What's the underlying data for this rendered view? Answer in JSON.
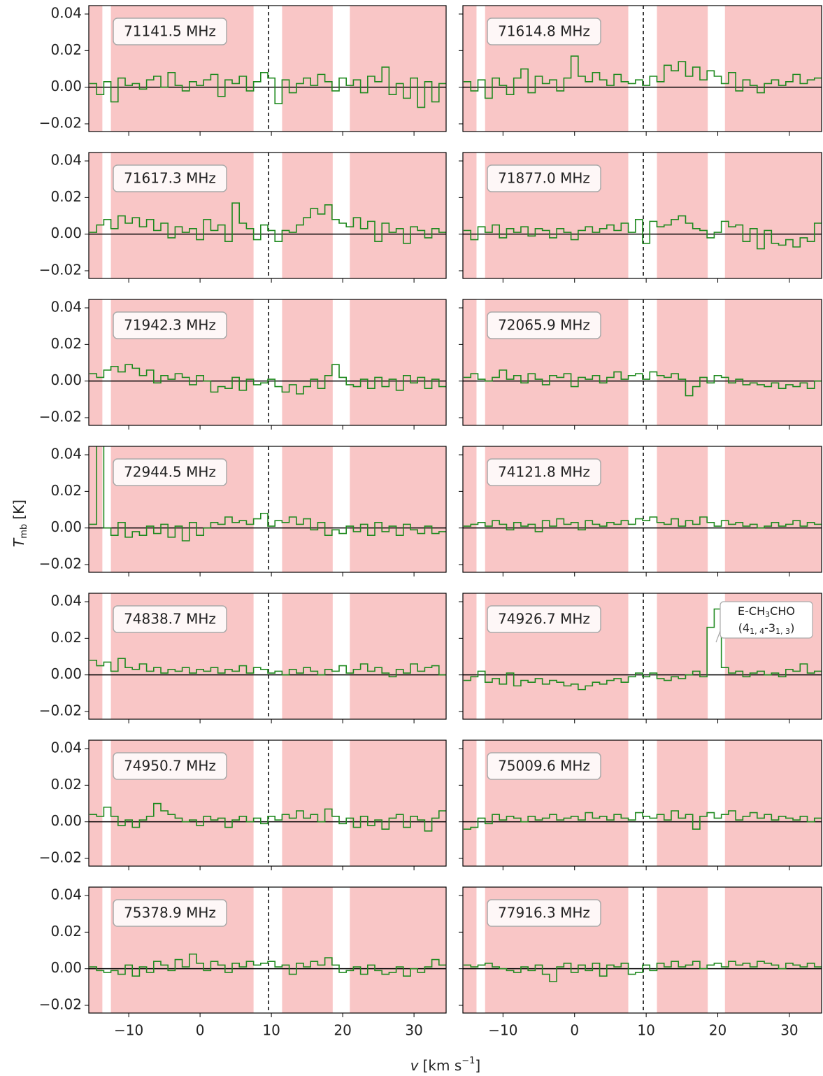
{
  "figure": {
    "x": [
      -15,
      -14,
      -13,
      -12,
      -11,
      -10,
      -9,
      -8,
      -7,
      -6,
      -5,
      -4,
      -3,
      -2,
      -1,
      0,
      1,
      2,
      3,
      4,
      5,
      6,
      7,
      8,
      9,
      10,
      11,
      12,
      13,
      14,
      15,
      16,
      17,
      18,
      19,
      20,
      21,
      22,
      23,
      24,
      25,
      26,
      27,
      28,
      29,
      30,
      31,
      32,
      33,
      34
    ],
    "xlim": [
      -15.6,
      34.5
    ],
    "ylim": [
      -0.0242,
      0.0446
    ],
    "xticks": [
      {
        "value": -10,
        "label": "−10"
      },
      0,
      10,
      20,
      30
    ],
    "yticks": [
      {
        "value": -0.02,
        "label": "−0.02"
      },
      {
        "value": 0,
        "label": "0.00"
      },
      0.02,
      0.04
    ],
    "xlabel": {
      "symbol": "v",
      "unit": "[km s",
      "exponent": "−1",
      "close": "]"
    },
    "ylabel": {
      "symbol": "T",
      "subscript": "mb",
      "unit": "[K]"
    },
    "color": "#1f8a1f",
    "shade_color": "#f9c6c6",
    "shaded_regions": [
      [
        -15.6,
        -13.7
      ],
      [
        -12.5,
        7.5
      ],
      [
        11.5,
        18.6
      ],
      [
        21.0,
        34.5
      ]
    ],
    "vline": 9.6
  },
  "chart_data": [
    {
      "type": "step",
      "label": "71141.5 MHz",
      "values": [
        0.002,
        -0.004,
        0.003,
        -0.008,
        0.005,
        0.001,
        0.002,
        -0.001,
        0.004,
        0.006,
        0.0,
        0.008,
        0.001,
        -0.002,
        0.003,
        0.001,
        0.004,
        0.007,
        -0.005,
        0.004,
        0.002,
        0.006,
        -0.002,
        0.003,
        0.008,
        0.005,
        -0.009,
        0.004,
        -0.003,
        0.002,
        0.005,
        0.001,
        0.007,
        0.003,
        -0.002,
        0.005,
        0.001,
        0.004,
        -0.003,
        0.006,
        0.003,
        0.011,
        -0.004,
        0.002,
        -0.006,
        0.005,
        -0.011,
        0.003,
        -0.008,
        0.002
      ]
    },
    {
      "type": "step",
      "label": "71614.8 MHz",
      "values": [
        0.003,
        -0.002,
        0.004,
        -0.006,
        0.005,
        0.001,
        -0.004,
        0.005,
        0.01,
        -0.003,
        0.006,
        0.002,
        0.004,
        -0.002,
        0.005,
        0.017,
        0.006,
        0.003,
        0.008,
        0.004,
        0.001,
        0.007,
        0.003,
        0.002,
        0.004,
        0.001,
        0.006,
        0.003,
        0.012,
        0.009,
        0.014,
        0.006,
        0.011,
        0.004,
        0.009,
        0.006,
        0.002,
        0.008,
        -0.002,
        0.004,
        0.001,
        -0.003,
        0.002,
        0.004,
        0.001,
        0.003,
        0.007,
        0.002,
        0.004,
        0.005
      ]
    },
    {
      "type": "step",
      "label": "71617.3 MHz",
      "values": [
        0.001,
        0.005,
        0.008,
        0.003,
        0.01,
        0.006,
        0.009,
        0.004,
        0.008,
        0.002,
        0.006,
        -0.002,
        0.004,
        0.001,
        0.003,
        -0.003,
        0.008,
        0.002,
        0.005,
        -0.004,
        0.017,
        0.006,
        0.003,
        -0.003,
        0.005,
        0.002,
        -0.004,
        0.002,
        0.001,
        0.005,
        0.009,
        0.014,
        0.011,
        0.016,
        0.008,
        0.006,
        0.004,
        0.009,
        0.003,
        0.007,
        -0.004,
        0.006,
        0.001,
        0.003,
        -0.005,
        0.004,
        0.002,
        -0.002,
        0.003,
        0.001
      ]
    },
    {
      "type": "step",
      "label": "71877.0 MHz",
      "values": [
        0.002,
        -0.003,
        0.004,
        0.001,
        0.005,
        -0.002,
        0.003,
        0.001,
        0.004,
        -0.001,
        0.003,
        0.002,
        -0.002,
        0.003,
        0.001,
        -0.003,
        0.002,
        0.004,
        0.001,
        0.003,
        0.005,
        0.002,
        0.006,
        0.001,
        0.008,
        -0.005,
        0.007,
        0.004,
        0.005,
        0.008,
        0.01,
        0.006,
        0.003,
        0.002,
        -0.002,
        0.001,
        0.007,
        0.004,
        0.005,
        -0.004,
        0.003,
        -0.008,
        0.002,
        -0.005,
        -0.006,
        -0.003,
        -0.007,
        -0.002,
        -0.004,
        0.006
      ]
    },
    {
      "type": "step",
      "label": "71942.3 MHz",
      "values": [
        0.004,
        0.002,
        0.006,
        0.008,
        0.005,
        0.009,
        0.007,
        0.003,
        0.006,
        -0.001,
        0.003,
        0.001,
        0.004,
        0.002,
        -0.002,
        0.003,
        0.0,
        -0.006,
        -0.003,
        -0.004,
        0.002,
        -0.005,
        0.001,
        -0.002,
        -0.001,
        0.001,
        -0.003,
        -0.006,
        -0.002,
        -0.007,
        -0.003,
        0.001,
        -0.004,
        0.003,
        0.009,
        0.002,
        -0.002,
        -0.003,
        0.001,
        -0.004,
        0.002,
        -0.003,
        0.001,
        -0.005,
        0.003,
        -0.001,
        0.002,
        -0.004,
        0.001,
        -0.003
      ]
    },
    {
      "type": "step",
      "label": "72065.9 MHz",
      "values": [
        0.002,
        0.004,
        0.001,
        0.0,
        0.002,
        0.006,
        0.001,
        0.003,
        -0.001,
        0.004,
        0.001,
        -0.002,
        0.003,
        0.002,
        0.004,
        -0.003,
        0.002,
        0.001,
        0.003,
        -0.001,
        0.002,
        0.005,
        0.001,
        0.003,
        0.004,
        0.001,
        0.005,
        0.003,
        0.002,
        0.004,
        0.001,
        -0.008,
        -0.003,
        0.002,
        -0.001,
        0.003,
        0.002,
        -0.001,
        0.001,
        -0.002,
        -0.001,
        -0.002,
        -0.003,
        -0.001,
        -0.004,
        -0.002,
        -0.003,
        -0.001,
        -0.004,
        0.0
      ]
    },
    {
      "type": "step",
      "label": "72944.5 MHz",
      "values": [
        0.002,
        0.06,
        0.0,
        -0.004,
        0.003,
        -0.005,
        -0.002,
        -0.004,
        0.001,
        -0.003,
        0.002,
        -0.005,
        0.001,
        -0.007,
        0.003,
        -0.004,
        0.0,
        0.003,
        0.002,
        0.006,
        0.003,
        0.004,
        0.002,
        0.005,
        0.008,
        0.001,
        0.004,
        0.003,
        0.006,
        0.002,
        0.005,
        -0.001,
        0.003,
        -0.004,
        -0.001,
        -0.003,
        0.001,
        -0.002,
        0.002,
        -0.004,
        0.003,
        -0.002,
        0.001,
        -0.004,
        0.002,
        -0.001,
        -0.003,
        0.001,
        -0.003,
        -0.002
      ]
    },
    {
      "type": "step",
      "label": "74121.8 MHz",
      "values": [
        0.001,
        0.002,
        0.003,
        0.001,
        0.004,
        0.002,
        -0.001,
        0.003,
        0.001,
        0.002,
        -0.002,
        0.004,
        0.001,
        0.005,
        0.002,
        0.003,
        -0.001,
        0.004,
        0.002,
        0.001,
        0.003,
        0.002,
        0.004,
        0.002,
        0.005,
        0.004,
        0.006,
        0.003,
        0.002,
        0.005,
        0.001,
        0.004,
        0.002,
        0.006,
        0.003,
        0.001,
        0.004,
        0.002,
        0.003,
        0.001,
        0.002,
        0.0,
        0.001,
        0.003,
        0.001,
        0.002,
        0.004,
        0.001,
        0.003,
        0.002
      ]
    },
    {
      "type": "step",
      "label": "74838.7 MHz",
      "values": [
        0.008,
        0.005,
        0.007,
        0.002,
        0.009,
        0.004,
        0.003,
        0.006,
        0.002,
        0.004,
        0.001,
        0.003,
        0.002,
        0.004,
        0.001,
        0.003,
        0.002,
        0.004,
        0.001,
        0.003,
        0.002,
        0.005,
        0.001,
        0.004,
        0.003,
        0.001,
        0.002,
        0.0,
        0.003,
        0.001,
        0.004,
        0.002,
        0.0,
        0.003,
        0.002,
        0.005,
        0.001,
        0.003,
        0.006,
        0.002,
        0.004,
        0.001,
        -0.001,
        0.003,
        0.001,
        0.006,
        0.002,
        0.004,
        0.005,
        0.0
      ]
    },
    {
      "type": "step",
      "label": "74926.7 MHz",
      "values": [
        -0.003,
        -0.001,
        0.002,
        -0.004,
        -0.002,
        -0.005,
        0.001,
        -0.006,
        -0.003,
        -0.004,
        -0.002,
        -0.005,
        -0.003,
        -0.004,
        -0.006,
        -0.005,
        -0.008,
        -0.006,
        -0.004,
        -0.005,
        -0.003,
        -0.002,
        -0.004,
        -0.001,
        0.001,
        -0.001,
        0.001,
        -0.002,
        -0.003,
        -0.001,
        -0.002,
        0.0,
        0.002,
        -0.001,
        0.026,
        0.036,
        0.004,
        0.001,
        0.002,
        -0.001,
        0.001,
        0.002,
        0.0,
        0.001,
        -0.001,
        0.003,
        0.002,
        0.006,
        0.001,
        0.002
      ],
      "annotation": {
        "line1": [
          "E-CH",
          "3",
          "CHO"
        ],
        "line2": [
          "(4",
          "1, 4",
          "-3",
          "1, 3",
          ")"
        ]
      }
    },
    {
      "type": "step",
      "label": "74950.7 MHz",
      "values": [
        0.004,
        0.003,
        0.008,
        0.003,
        -0.002,
        0.001,
        -0.003,
        0.001,
        0.003,
        0.01,
        0.006,
        0.004,
        0.002,
        0.0,
        0.001,
        -0.002,
        0.003,
        0.001,
        0.002,
        -0.003,
        0.001,
        0.003,
        0.0,
        0.002,
        -0.001,
        0.003,
        0.001,
        0.004,
        0.002,
        0.006,
        0.002,
        0.004,
        0.0,
        0.007,
        0.003,
        -0.001,
        0.002,
        -0.003,
        0.003,
        -0.002,
        0.001,
        -0.004,
        0.002,
        0.004,
        -0.003,
        0.003,
        0.001,
        -0.005,
        0.002,
        0.006
      ]
    },
    {
      "type": "step",
      "label": "75009.6 MHz",
      "values": [
        -0.004,
        -0.003,
        0.002,
        -0.001,
        0.004,
        0.001,
        0.003,
        0.002,
        0.0,
        0.003,
        0.001,
        0.002,
        0.004,
        0.001,
        0.002,
        0.003,
        0.001,
        0.005,
        0.002,
        0.003,
        0.001,
        0.004,
        0.002,
        0.001,
        0.005,
        0.003,
        0.002,
        0.004,
        0.001,
        0.006,
        0.002,
        0.004,
        -0.004,
        0.003,
        0.005,
        0.002,
        0.004,
        0.006,
        0.001,
        0.003,
        0.005,
        0.002,
        0.004,
        0.001,
        0.003,
        0.002,
        0.001,
        0.003,
        0.0,
        0.002
      ]
    },
    {
      "type": "step",
      "label": "75378.9 MHz",
      "values": [
        0.001,
        -0.001,
        -0.002,
        -0.001,
        -0.003,
        0.002,
        -0.004,
        0.001,
        -0.002,
        0.004,
        0.002,
        -0.001,
        0.005,
        0.001,
        0.008,
        0.003,
        -0.001,
        0.004,
        0.002,
        -0.002,
        0.003,
        0.001,
        0.004,
        0.002,
        0.003,
        0.004,
        0.001,
        0.002,
        -0.003,
        0.003,
        0.001,
        0.004,
        0.002,
        0.006,
        0.002,
        -0.002,
        -0.001,
        0.001,
        -0.003,
        0.002,
        -0.001,
        -0.003,
        -0.002,
        0.001,
        -0.004,
        0.0,
        -0.002,
        0.001,
        0.005,
        0.002
      ]
    },
    {
      "type": "step",
      "label": "77916.3 MHz",
      "values": [
        0.002,
        0.001,
        0.002,
        0.003,
        0.001,
        0.0,
        -0.001,
        -0.002,
        0.001,
        -0.001,
        0.002,
        -0.003,
        -0.007,
        0.001,
        0.003,
        -0.002,
        0.002,
        -0.001,
        0.003,
        -0.004,
        0.002,
        0.001,
        0.003,
        -0.003,
        -0.002,
        0.002,
        -0.001,
        0.003,
        0.001,
        0.004,
        0.001,
        0.002,
        0.004,
        0.0,
        0.002,
        0.003,
        0.001,
        0.004,
        0.002,
        0.003,
        0.001,
        0.004,
        0.003,
        0.002,
        0.0,
        0.003,
        0.002,
        0.001,
        0.003,
        0.001
      ]
    }
  ]
}
